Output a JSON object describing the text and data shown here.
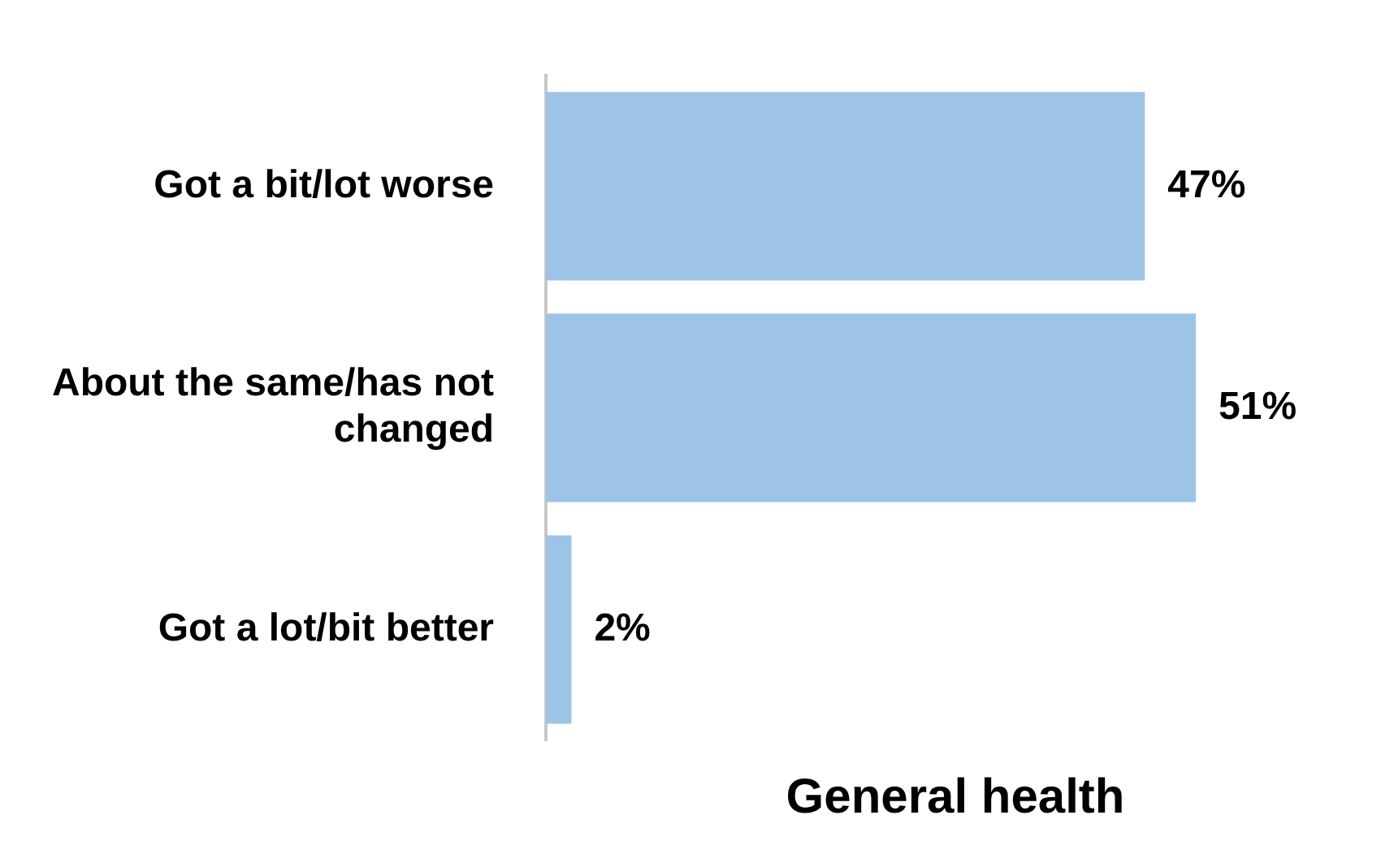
{
  "chart_data": {
    "type": "bar",
    "orientation": "horizontal",
    "categories": [
      "Got a bit/lot worse",
      "About the same/has not changed",
      "Got a lot/bit better"
    ],
    "values": [
      47,
      51,
      2
    ],
    "value_labels": [
      "47%",
      "51%",
      "2%"
    ],
    "color": "#9dc3e6",
    "xlabel": "General health",
    "grid": false,
    "legend": false
  }
}
